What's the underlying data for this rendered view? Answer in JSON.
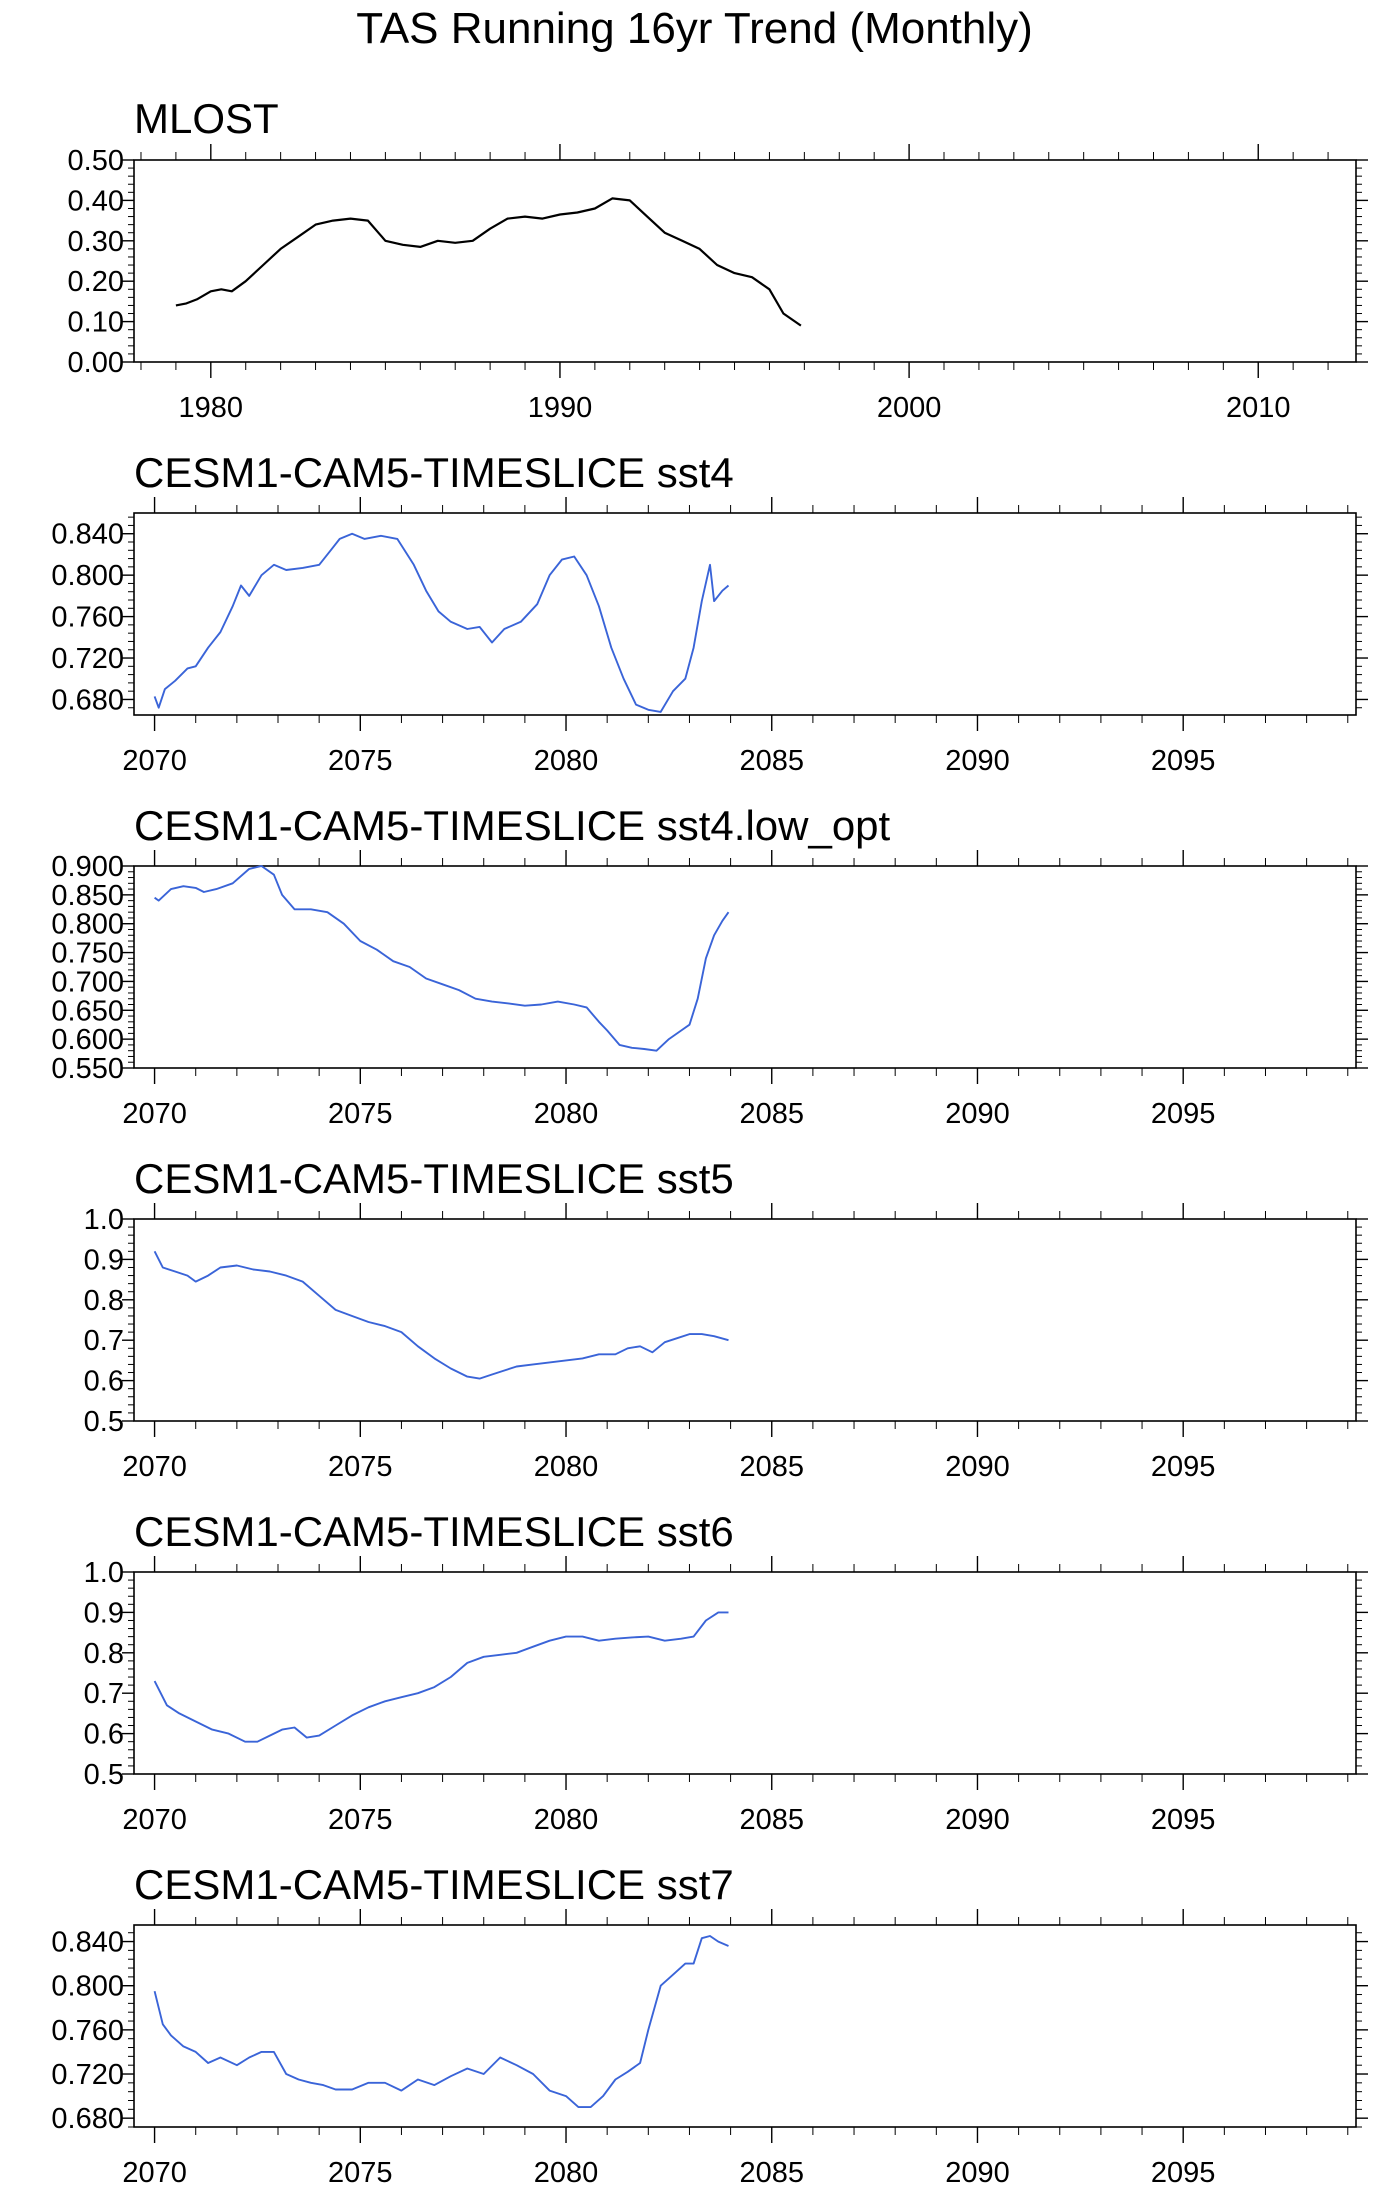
{
  "title": "TAS Running 16yr Trend (Monthly)",
  "chart_data": [
    {
      "type": "line",
      "title": "MLOST",
      "xlim": [
        1977.8,
        2012.8
      ],
      "ylim": [
        0.0,
        0.5
      ],
      "x_ticks": [
        1980,
        1990,
        2000,
        2010
      ],
      "y_ticks": [
        "0.00",
        "0.10",
        "0.20",
        "0.30",
        "0.40",
        "0.50"
      ],
      "grid": false,
      "series": [
        {
          "color": "#000000",
          "x": [
            1979.0,
            1979.3,
            1979.6,
            1980.0,
            1980.3,
            1980.6,
            1981.0,
            1981.5,
            1982.0,
            1982.5,
            1983.0,
            1983.5,
            1984.0,
            1984.5,
            1985.0,
            1985.5,
            1986.0,
            1986.5,
            1987.0,
            1987.5,
            1988.0,
            1988.5,
            1989.0,
            1989.5,
            1990.0,
            1990.5,
            1991.0,
            1991.5,
            1992.0,
            1992.5,
            1993.0,
            1993.5,
            1994.0,
            1994.5,
            1995.0,
            1995.5,
            1996.0,
            1996.4,
            1996.9
          ],
          "y": [
            0.14,
            0.145,
            0.155,
            0.175,
            0.18,
            0.175,
            0.2,
            0.24,
            0.28,
            0.31,
            0.34,
            0.35,
            0.355,
            0.35,
            0.3,
            0.29,
            0.285,
            0.3,
            0.295,
            0.3,
            0.33,
            0.355,
            0.36,
            0.355,
            0.365,
            0.37,
            0.38,
            0.405,
            0.4,
            0.36,
            0.32,
            0.3,
            0.28,
            0.24,
            0.22,
            0.21,
            0.18,
            0.12,
            0.09
          ]
        }
      ]
    },
    {
      "type": "line",
      "title": "CESM1-CAM5-TIMESLICE sst4",
      "xlim": [
        2069.5,
        2099.2
      ],
      "ylim": [
        0.665,
        0.86
      ],
      "x_ticks": [
        2070,
        2075,
        2080,
        2085,
        2090,
        2095
      ],
      "y_ticks": [
        "0.680",
        "0.720",
        "0.760",
        "0.800",
        "0.840"
      ],
      "grid": false,
      "series": [
        {
          "color": "#3a64d8",
          "x": [
            2070.0,
            2070.1,
            2070.25,
            2070.5,
            2070.8,
            2071.0,
            2071.3,
            2071.6,
            2071.9,
            2072.1,
            2072.3,
            2072.6,
            2072.9,
            2073.2,
            2073.6,
            2074.0,
            2074.3,
            2074.5,
            2074.8,
            2075.1,
            2075.5,
            2075.9,
            2076.3,
            2076.6,
            2076.9,
            2077.2,
            2077.6,
            2077.9,
            2078.2,
            2078.5,
            2078.9,
            2079.3,
            2079.6,
            2079.9,
            2080.2,
            2080.5,
            2080.8,
            2081.1,
            2081.4,
            2081.7,
            2082.0,
            2082.3,
            2082.6,
            2082.9,
            2083.1,
            2083.3,
            2083.5,
            2083.6,
            2083.8,
            2083.95
          ],
          "y": [
            0.683,
            0.672,
            0.69,
            0.698,
            0.71,
            0.712,
            0.73,
            0.745,
            0.77,
            0.79,
            0.78,
            0.8,
            0.81,
            0.805,
            0.807,
            0.81,
            0.825,
            0.835,
            0.84,
            0.835,
            0.838,
            0.835,
            0.81,
            0.785,
            0.765,
            0.755,
            0.748,
            0.75,
            0.735,
            0.748,
            0.755,
            0.772,
            0.8,
            0.815,
            0.818,
            0.8,
            0.77,
            0.73,
            0.7,
            0.675,
            0.67,
            0.668,
            0.688,
            0.7,
            0.73,
            0.775,
            0.81,
            0.775,
            0.785,
            0.79
          ]
        }
      ]
    },
    {
      "type": "line",
      "title": "CESM1-CAM5-TIMESLICE sst4.low_opt",
      "xlim": [
        2069.5,
        2099.2
      ],
      "ylim": [
        0.55,
        0.9
      ],
      "x_ticks": [
        2070,
        2075,
        2080,
        2085,
        2090,
        2095
      ],
      "y_ticks": [
        "0.550",
        "0.600",
        "0.650",
        "0.700",
        "0.750",
        "0.800",
        "0.850",
        "0.900"
      ],
      "grid": false,
      "series": [
        {
          "color": "#3a64d8",
          "x": [
            2070.0,
            2070.1,
            2070.4,
            2070.7,
            2071.0,
            2071.2,
            2071.5,
            2071.9,
            2072.3,
            2072.6,
            2072.9,
            2073.1,
            2073.4,
            2073.8,
            2074.2,
            2074.6,
            2075.0,
            2075.4,
            2075.8,
            2076.2,
            2076.6,
            2077.0,
            2077.4,
            2077.8,
            2078.2,
            2078.6,
            2079.0,
            2079.4,
            2079.8,
            2080.2,
            2080.5,
            2080.8,
            2081.0,
            2081.3,
            2081.6,
            2081.9,
            2082.2,
            2082.5,
            2082.8,
            2083.0,
            2083.2,
            2083.4,
            2083.6,
            2083.8,
            2083.95
          ],
          "y": [
            0.845,
            0.84,
            0.86,
            0.865,
            0.862,
            0.855,
            0.86,
            0.87,
            0.895,
            0.9,
            0.885,
            0.85,
            0.825,
            0.825,
            0.82,
            0.8,
            0.77,
            0.755,
            0.735,
            0.725,
            0.705,
            0.695,
            0.685,
            0.67,
            0.665,
            0.662,
            0.658,
            0.66,
            0.665,
            0.66,
            0.655,
            0.63,
            0.615,
            0.59,
            0.585,
            0.583,
            0.58,
            0.6,
            0.615,
            0.625,
            0.67,
            0.74,
            0.78,
            0.805,
            0.82
          ]
        }
      ]
    },
    {
      "type": "line",
      "title": "CESM1-CAM5-TIMESLICE sst5",
      "xlim": [
        2069.5,
        2099.2
      ],
      "ylim": [
        0.5,
        1.0
      ],
      "x_ticks": [
        2070,
        2075,
        2080,
        2085,
        2090,
        2095
      ],
      "y_ticks": [
        "0.5",
        "0.6",
        "0.7",
        "0.8",
        "0.9",
        "1.0"
      ],
      "grid": false,
      "series": [
        {
          "color": "#3a64d8",
          "x": [
            2070.0,
            2070.2,
            2070.5,
            2070.8,
            2071.0,
            2071.3,
            2071.6,
            2072.0,
            2072.4,
            2072.8,
            2073.2,
            2073.6,
            2074.0,
            2074.4,
            2074.8,
            2075.2,
            2075.6,
            2076.0,
            2076.4,
            2076.8,
            2077.2,
            2077.6,
            2077.9,
            2078.2,
            2078.5,
            2078.8,
            2079.2,
            2079.6,
            2080.0,
            2080.4,
            2080.8,
            2081.2,
            2081.5,
            2081.8,
            2082.1,
            2082.4,
            2082.7,
            2083.0,
            2083.3,
            2083.6,
            2083.95
          ],
          "y": [
            0.92,
            0.88,
            0.87,
            0.86,
            0.845,
            0.86,
            0.88,
            0.885,
            0.875,
            0.87,
            0.86,
            0.845,
            0.81,
            0.775,
            0.76,
            0.745,
            0.735,
            0.72,
            0.685,
            0.655,
            0.63,
            0.61,
            0.605,
            0.615,
            0.625,
            0.635,
            0.64,
            0.645,
            0.65,
            0.655,
            0.665,
            0.665,
            0.68,
            0.685,
            0.67,
            0.695,
            0.705,
            0.715,
            0.715,
            0.71,
            0.7
          ]
        }
      ]
    },
    {
      "type": "line",
      "title": "CESM1-CAM5-TIMESLICE sst6",
      "xlim": [
        2069.5,
        2099.2
      ],
      "ylim": [
        0.5,
        1.0
      ],
      "x_ticks": [
        2070,
        2075,
        2080,
        2085,
        2090,
        2095
      ],
      "y_ticks": [
        "0.5",
        "0.6",
        "0.7",
        "0.8",
        "0.9",
        "1.0"
      ],
      "grid": false,
      "series": [
        {
          "color": "#3a64d8",
          "x": [
            2070.0,
            2070.3,
            2070.6,
            2071.0,
            2071.4,
            2071.8,
            2072.2,
            2072.5,
            2072.8,
            2073.1,
            2073.4,
            2073.7,
            2074.0,
            2074.4,
            2074.8,
            2075.2,
            2075.6,
            2076.0,
            2076.4,
            2076.8,
            2077.2,
            2077.6,
            2078.0,
            2078.4,
            2078.8,
            2079.2,
            2079.6,
            2080.0,
            2080.4,
            2080.8,
            2081.2,
            2081.6,
            2082.0,
            2082.4,
            2082.8,
            2083.1,
            2083.4,
            2083.7,
            2083.95
          ],
          "y": [
            0.73,
            0.67,
            0.65,
            0.63,
            0.61,
            0.6,
            0.58,
            0.58,
            0.595,
            0.61,
            0.615,
            0.59,
            0.595,
            0.62,
            0.645,
            0.665,
            0.68,
            0.69,
            0.7,
            0.715,
            0.74,
            0.775,
            0.79,
            0.795,
            0.8,
            0.815,
            0.83,
            0.84,
            0.84,
            0.83,
            0.835,
            0.838,
            0.84,
            0.83,
            0.835,
            0.84,
            0.88,
            0.9,
            0.9
          ]
        }
      ]
    },
    {
      "type": "line",
      "title": "CESM1-CAM5-TIMESLICE sst7",
      "xlim": [
        2069.5,
        2099.2
      ],
      "ylim": [
        0.672,
        0.855
      ],
      "x_ticks": [
        2070,
        2075,
        2080,
        2085,
        2090,
        2095
      ],
      "y_ticks": [
        "0.680",
        "0.720",
        "0.760",
        "0.800",
        "0.840"
      ],
      "grid": false,
      "series": [
        {
          "color": "#3a64d8",
          "x": [
            2070.0,
            2070.2,
            2070.4,
            2070.7,
            2071.0,
            2071.3,
            2071.6,
            2072.0,
            2072.3,
            2072.6,
            2072.9,
            2073.2,
            2073.5,
            2073.8,
            2074.1,
            2074.4,
            2074.8,
            2075.2,
            2075.6,
            2076.0,
            2076.4,
            2076.8,
            2077.2,
            2077.6,
            2078.0,
            2078.4,
            2078.8,
            2079.2,
            2079.6,
            2080.0,
            2080.3,
            2080.6,
            2080.9,
            2081.2,
            2081.5,
            2081.8,
            2082.0,
            2082.3,
            2082.6,
            2082.9,
            2083.1,
            2083.3,
            2083.5,
            2083.7,
            2083.95
          ],
          "y": [
            0.795,
            0.765,
            0.755,
            0.745,
            0.74,
            0.73,
            0.735,
            0.728,
            0.735,
            0.74,
            0.74,
            0.72,
            0.715,
            0.712,
            0.71,
            0.706,
            0.706,
            0.712,
            0.712,
            0.705,
            0.715,
            0.71,
            0.718,
            0.725,
            0.72,
            0.735,
            0.728,
            0.72,
            0.705,
            0.7,
            0.69,
            0.69,
            0.7,
            0.715,
            0.722,
            0.73,
            0.76,
            0.8,
            0.81,
            0.82,
            0.82,
            0.843,
            0.845,
            0.84,
            0.836
          ]
        }
      ]
    }
  ]
}
